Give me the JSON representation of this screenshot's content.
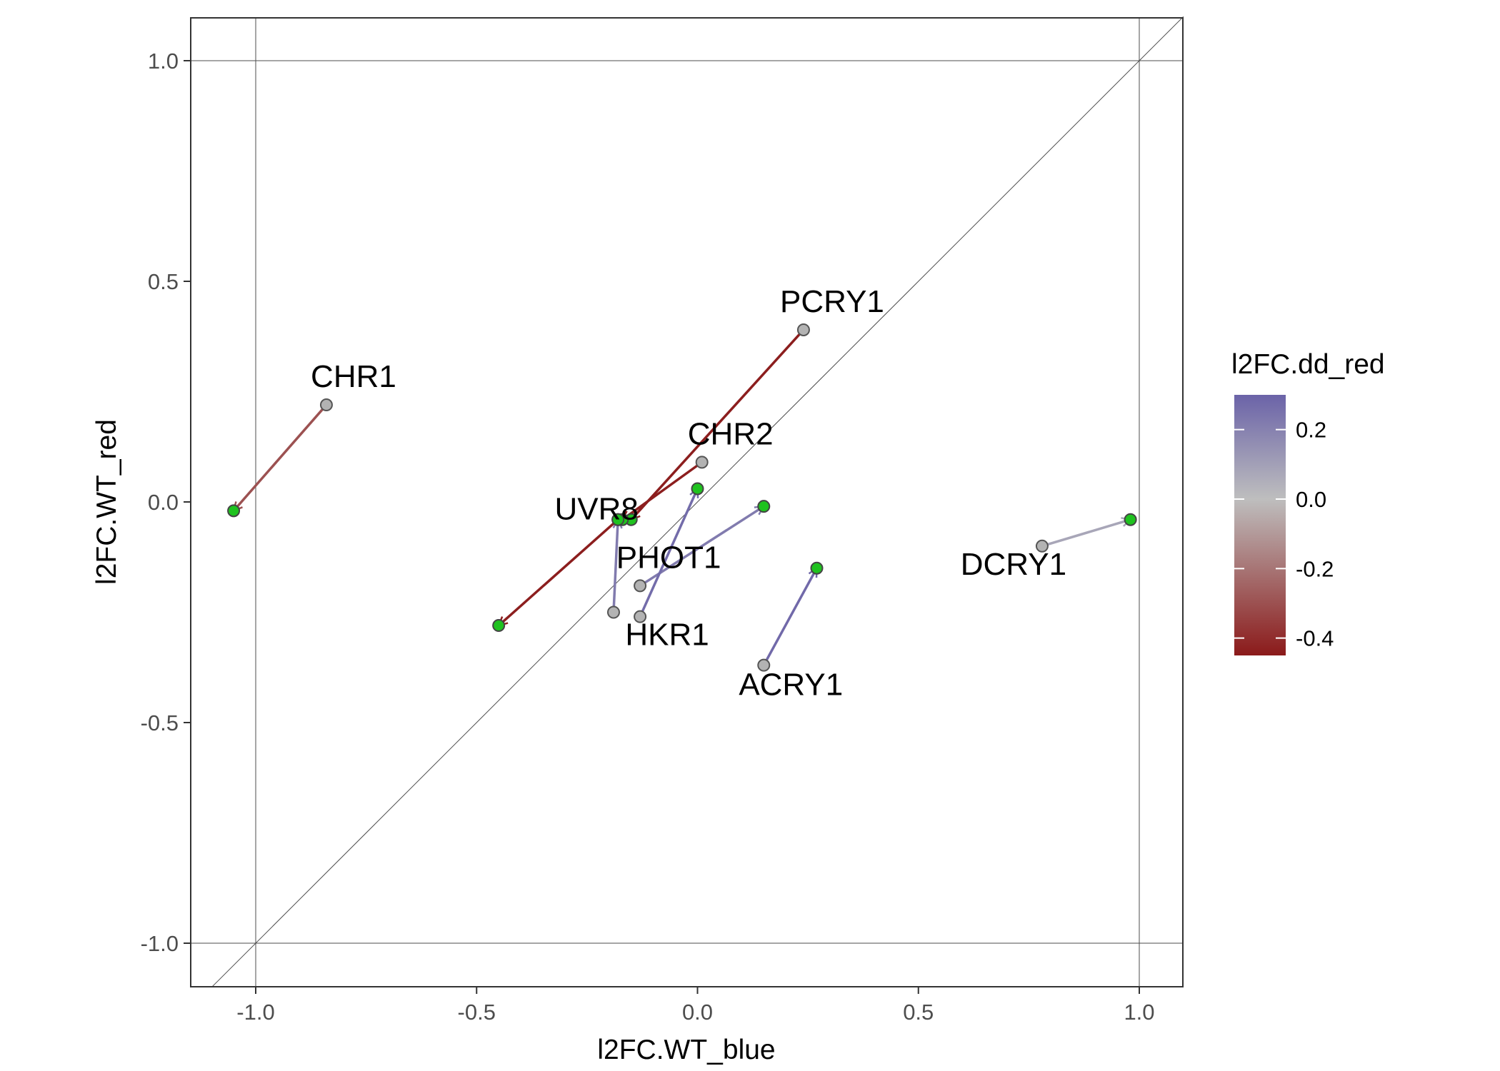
{
  "chart_data": {
    "type": "scatter",
    "xlabel": "l2FC.WT_blue",
    "ylabel": "l2FC.WT_red",
    "xlim": [
      -1.12,
      1.12
    ],
    "ylim": [
      -1.1,
      1.1
    ],
    "xticks": [
      -1.0,
      -0.5,
      0.0,
      0.5,
      1.0
    ],
    "xtick_labels": [
      "-1.0",
      "-0.5",
      "0.0",
      "0.5",
      "1.0"
    ],
    "yticks": [
      -1.0,
      -0.5,
      0.0,
      0.5,
      1.0
    ],
    "ytick_labels": [
      "-1.0",
      "-0.5",
      "0.0",
      "0.5",
      "1.0"
    ],
    "reference_lines": {
      "vertical": [
        -1.0,
        1.0
      ],
      "horizontal": [
        -1.0,
        1.0
      ],
      "diagonal": "y = x"
    },
    "grid": false,
    "start_point_color": "#b3b3b3",
    "end_point_color": "#1fc21f",
    "genes": [
      {
        "name": "PCRY1",
        "start": [
          0.24,
          0.39
        ],
        "end": [
          -0.15,
          -0.04
        ],
        "color_value": -0.44
      },
      {
        "name": "CHR1",
        "start": [
          -0.84,
          0.22
        ],
        "end": [
          -1.05,
          -0.02
        ],
        "color_value": -0.3
      },
      {
        "name": "CHR2",
        "start": [
          0.01,
          0.09
        ],
        "end": [
          -0.17,
          -0.04
        ],
        "color_value": -0.44
      },
      {
        "name": "UVR8",
        "start": [
          -0.18,
          -0.04
        ],
        "end": [
          -0.45,
          -0.28
        ],
        "color_value": -0.44
      },
      {
        "name": "PHOT1",
        "start": [
          -0.13,
          -0.19
        ],
        "end": [
          0.15,
          -0.01
        ],
        "color_value": 0.22
      },
      {
        "name": "HKR1",
        "start": [
          -0.13,
          -0.26
        ],
        "end": [
          0.0,
          0.03
        ],
        "color_value": 0.27
      },
      {
        "name": "ACRY1",
        "start": [
          0.15,
          -0.37
        ],
        "end": [
          0.27,
          -0.15
        ],
        "color_value": 0.28
      },
      {
        "name": "DCRY1",
        "start": [
          0.78,
          -0.1
        ],
        "end": [
          0.98,
          -0.04
        ],
        "color_value": 0.08
      },
      {
        "name": "",
        "start": [
          -0.19,
          -0.25
        ],
        "end": [
          -0.18,
          -0.04
        ],
        "color_value": 0.22
      }
    ],
    "legend": {
      "title": "l2FC.dd_red",
      "position": "right",
      "range": [
        -0.45,
        0.3
      ],
      "ticks": [
        0.2,
        0.0,
        -0.2,
        -0.4
      ],
      "tick_labels": [
        "0.2",
        "0.0",
        "-0.2",
        "-0.4"
      ],
      "low_color": "#8b1a1a",
      "mid_color": "#bebebe",
      "high_color": "#6b63a8"
    }
  }
}
